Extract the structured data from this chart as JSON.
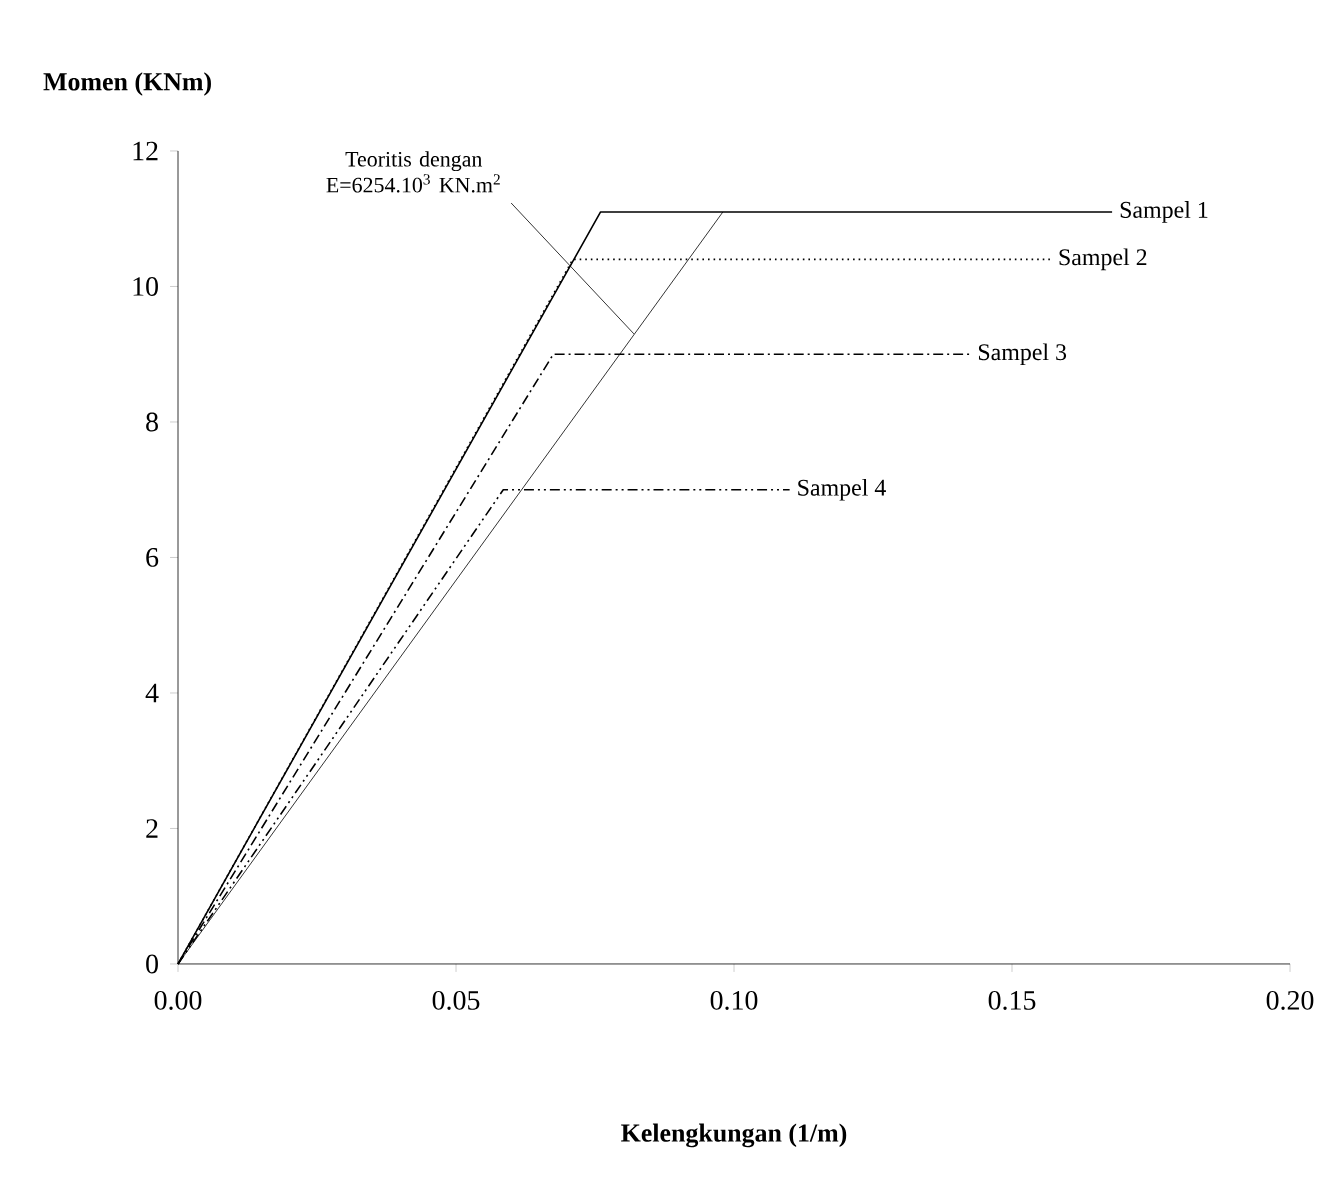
{
  "chart_data": {
    "type": "line",
    "xlabel": "Kelengkungan (1/m)",
    "ylabel": "Momen (KNm)",
    "xlim": [
      0,
      0.2
    ],
    "ylim": [
      0,
      12
    ],
    "xticks": [
      {
        "value": 0,
        "label": "0.00"
      },
      {
        "value": 0.05,
        "label": "0.05"
      },
      {
        "value": 0.1,
        "label": "0.10"
      },
      {
        "value": 0.15,
        "label": "0.15"
      },
      {
        "value": 0.2,
        "label": "0.20"
      }
    ],
    "yticks": [
      0,
      2,
      4,
      6,
      8,
      10,
      12
    ],
    "grid": false,
    "legend": false,
    "marker": "none",
    "series": [
      {
        "color": "#000000",
        "line_style": "solid",
        "x": [
          0,
          0.098
        ],
        "values": [
          0,
          11.1
        ]
      },
      {
        "name": "Sampel 1",
        "color": "#000000",
        "line_style": "solid",
        "x": [
          0,
          0.076,
          0.168
        ],
        "values": [
          0,
          11.1,
          11.1
        ]
      },
      {
        "name": "Sampel 2",
        "color": "#000000",
        "line_style": "dotted",
        "x": [
          0,
          0.071,
          0.157
        ],
        "values": [
          0,
          10.4,
          10.4
        ]
      },
      {
        "name": "Sampel 3",
        "color": "#000000",
        "line_style": "dashdot",
        "x": [
          0,
          0.0675,
          0.1425
        ],
        "values": [
          0,
          9.0,
          9.0
        ]
      },
      {
        "name": "Sampel 4",
        "color": "#000000",
        "line_style": "dashdotdot",
        "x": [
          0,
          0.0585,
          0.11
        ],
        "values": [
          0,
          7.0,
          7.0
        ]
      }
    ],
    "annotations": [
      {
        "text": "Teoritis dengan E=6254.10$^{3}$ KN.m$^{2}$",
        "x": 0.082,
        "y": 9.3
      }
    ]
  }
}
